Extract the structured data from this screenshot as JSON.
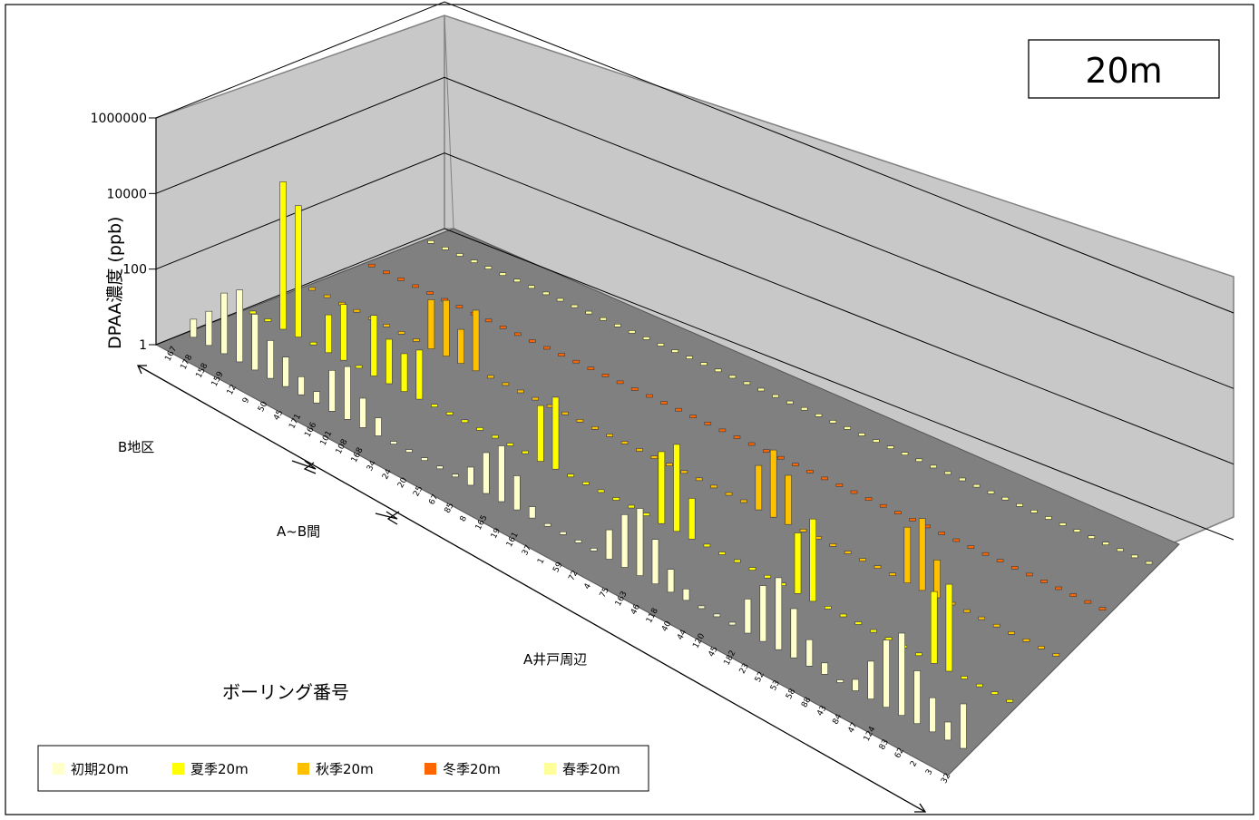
{
  "chart_data": {
    "type": "bar",
    "subtype": "3d-column",
    "depth_label": "20m",
    "ylabel": "DPAA濃度 (ppb)",
    "xlabel": "ボーリング番号",
    "yscale": "log",
    "ylim": [
      1,
      1000000
    ],
    "yticks": [
      "1",
      "100",
      "10000",
      "1000000"
    ],
    "grid": true,
    "legend_position": "bottom-left",
    "zones": [
      {
        "label": "B地区"
      },
      {
        "label": "A~B間"
      },
      {
        "label": "A井戸周辺"
      }
    ],
    "visible_category_labels": [
      "167",
      "178",
      "158",
      "159",
      "12",
      "9",
      "50",
      "45",
      "171",
      "166",
      "101",
      "108",
      "168",
      "34",
      "24",
      "20",
      "25",
      "67",
      "85",
      "8",
      "165",
      "19",
      "161",
      "37",
      "1",
      "59",
      "72",
      "4",
      "75",
      "163",
      "46",
      "118",
      "40",
      "44",
      "120",
      "45",
      "182",
      "23",
      "52",
      "53",
      "58",
      "88",
      "43",
      "84",
      "47",
      "124",
      "83",
      "62",
      "2",
      "3",
      "32"
    ],
    "series": [
      {
        "name": "初期20m",
        "color": "#FFFFCC",
        "values": [
          3,
          8,
          40,
          80,
          30,
          10,
          6,
          3,
          2,
          12,
          25,
          6,
          3,
          1,
          1,
          1,
          1,
          1,
          3,
          12,
          30,
          8,
          2,
          1,
          1,
          1,
          1,
          6,
          25,
          60,
          15,
          4,
          2,
          1,
          1,
          1,
          8,
          30,
          80,
          20,
          5,
          2,
          1,
          2,
          10,
          60,
          150,
          25,
          8,
          3,
          15
        ]
      },
      {
        "name": "夏季20m",
        "color": "#FFFF00",
        "values": [
          1,
          1,
          8000,
          3000,
          1,
          10,
          30,
          1,
          40,
          15,
          10,
          20,
          1,
          1,
          1,
          1,
          1,
          1,
          1,
          30,
          80,
          1,
          1,
          1,
          1,
          1,
          1,
          80,
          200,
          12,
          1,
          1,
          1,
          1,
          1,
          1,
          40,
          150,
          1,
          1,
          1,
          1,
          1,
          1,
          1,
          80,
          200,
          1,
          1,
          1,
          1
        ]
      },
      {
        "name": "秋季20m",
        "color": "#FFC000",
        "values": [
          1,
          1,
          1,
          1,
          1,
          1,
          1,
          1,
          20,
          30,
          8,
          40,
          1,
          1,
          1,
          1,
          1,
          1,
          1,
          1,
          1,
          1,
          1,
          1,
          1,
          1,
          1,
          1,
          1,
          1,
          15,
          60,
          20,
          1,
          1,
          1,
          1,
          1,
          1,
          1,
          30,
          80,
          10,
          1,
          1,
          1,
          1,
          1,
          1,
          1,
          1
        ]
      },
      {
        "name": "冬季20m",
        "color": "#FF6600",
        "values": [
          1,
          1,
          1,
          1,
          1,
          1,
          1,
          1,
          1,
          1,
          1,
          1,
          1,
          1,
          1,
          1,
          1,
          1,
          1,
          1,
          1,
          1,
          1,
          1,
          1,
          1,
          1,
          1,
          1,
          1,
          1,
          1,
          1,
          1,
          1,
          1,
          1,
          1,
          1,
          1,
          1,
          1,
          1,
          1,
          1,
          1,
          1,
          1,
          1,
          1,
          1
        ]
      },
      {
        "name": "春季20m",
        "color": "#FFFF99",
        "values": [
          1,
          1,
          1,
          1,
          1,
          1,
          1,
          1,
          1,
          1,
          1,
          1,
          1,
          1,
          1,
          1,
          1,
          1,
          1,
          1,
          1,
          1,
          1,
          1,
          1,
          1,
          1,
          1,
          1,
          1,
          1,
          1,
          1,
          1,
          1,
          1,
          1,
          1,
          1,
          1,
          1,
          1,
          1,
          1,
          1,
          1,
          1,
          1,
          1,
          1,
          1
        ]
      }
    ]
  }
}
